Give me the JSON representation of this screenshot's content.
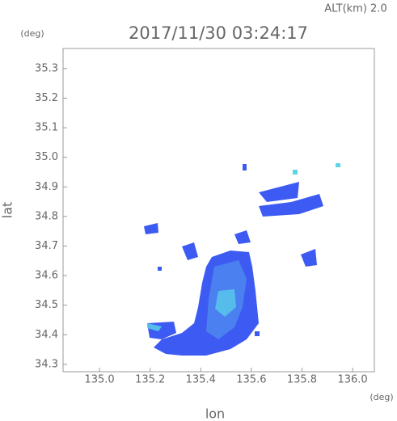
{
  "chart_data": {
    "type": "map",
    "title": "2017/11/30 03:24:17",
    "annotation": "ALT(km) 2.0",
    "x_unit": "(deg)",
    "y_unit": "(deg)",
    "x_label": "lon",
    "y_label": "lat",
    "xlim": [
      134.856,
      136.086
    ],
    "xticks": [
      {
        "value": 135.0,
        "label": "135.0"
      },
      135.2,
      135.4,
      135.6,
      135.8,
      {
        "value": 136.0,
        "label": "136.0"
      }
    ],
    "ylim": [
      34.275,
      35.368
    ],
    "yticks": [
      35.3,
      35.2,
      35.1,
      {
        "value": 35.0,
        "label": "35.0"
      },
      34.9,
      34.8,
      34.7,
      34.6,
      34.5,
      34.4,
      34.3
    ]
  }
}
